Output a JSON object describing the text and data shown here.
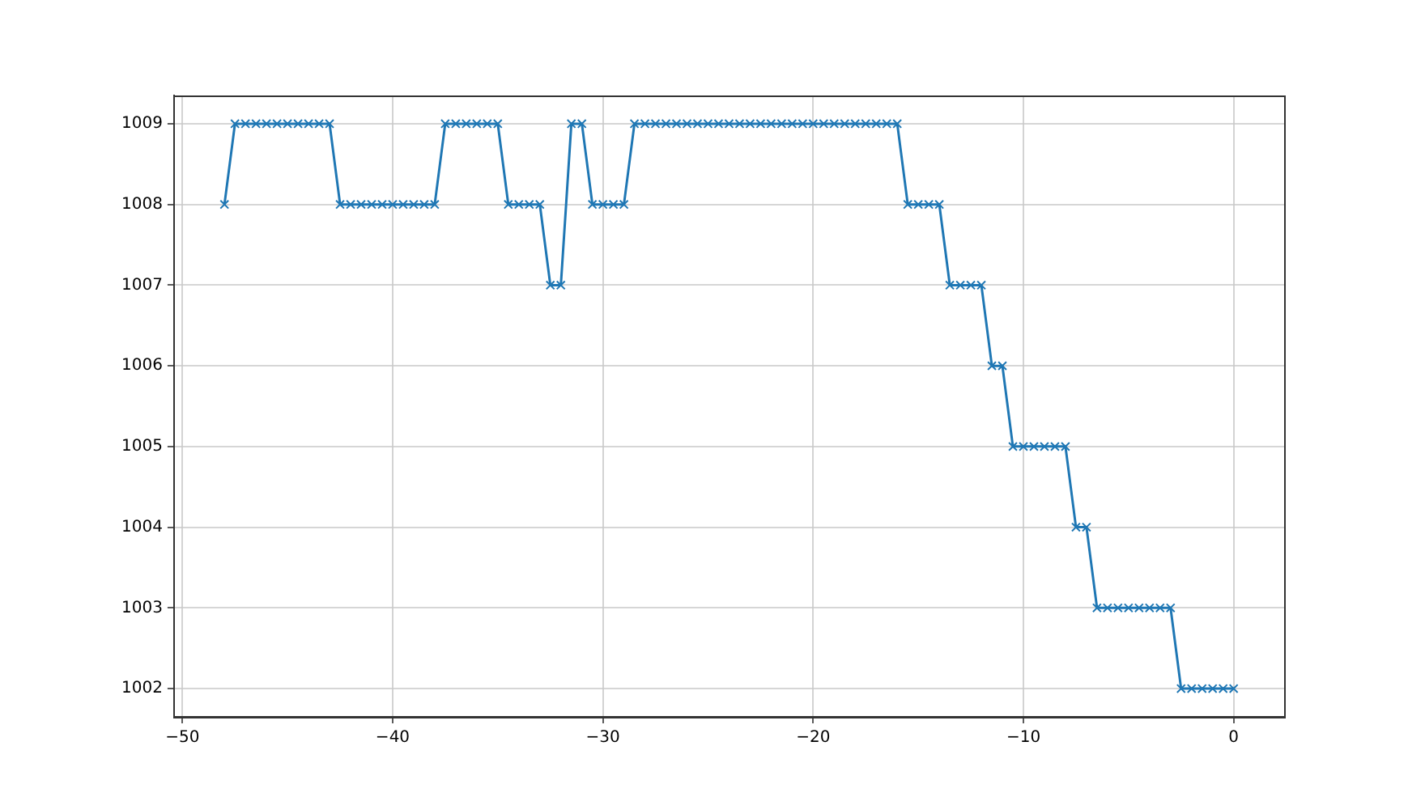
{
  "chart_data": {
    "type": "line",
    "x": [
      -48,
      -47.5,
      -47,
      -46.5,
      -46,
      -45.5,
      -45,
      -44.5,
      -44,
      -43.5,
      -43,
      -42.5,
      -42,
      -41.5,
      -41,
      -40.5,
      -40,
      -39.5,
      -39,
      -38.5,
      -38,
      -37.5,
      -37,
      -36.5,
      -36,
      -35.5,
      -35,
      -34.5,
      -34,
      -33.5,
      -33,
      -32.5,
      -32,
      -31.5,
      -31,
      -30.5,
      -30,
      -29.5,
      -29,
      -28.5,
      -28,
      -27.5,
      -27,
      -26.5,
      -26,
      -25.5,
      -25,
      -24.5,
      -24,
      -23.5,
      -23,
      -22.5,
      -22,
      -21.5,
      -21,
      -20.5,
      -20,
      -19.5,
      -19,
      -18.5,
      -18,
      -17.5,
      -17,
      -16.5,
      -16,
      -15.5,
      -15,
      -14.5,
      -14,
      -13.5,
      -13,
      -12.5,
      -12,
      -11.5,
      -11,
      -10.5,
      -10,
      -9.5,
      -9,
      -8.5,
      -8,
      -7.5,
      -7,
      -6.5,
      -6,
      -5.5,
      -5,
      -4.5,
      -4,
      -3.5,
      -3,
      -2.5,
      -2,
      -1.5,
      -1,
      -0.5,
      0
    ],
    "series": [
      {
        "color": "#1f77b4",
        "values": [
          1008,
          1009,
          1009,
          1009,
          1009,
          1009,
          1009,
          1009,
          1009,
          1009,
          1009,
          1008,
          1008,
          1008,
          1008,
          1008,
          1008,
          1008,
          1008,
          1008,
          1008,
          1009,
          1009,
          1009,
          1009,
          1009,
          1009,
          1008,
          1008,
          1008,
          1008,
          1007,
          1007,
          1009,
          1009,
          1008,
          1008,
          1008,
          1008,
          1009,
          1009,
          1009,
          1009,
          1009,
          1009,
          1009,
          1009,
          1009,
          1009,
          1009,
          1009,
          1009,
          1009,
          1009,
          1009,
          1009,
          1009,
          1009,
          1009,
          1009,
          1009,
          1009,
          1009,
          1009,
          1009,
          1008,
          1008,
          1008,
          1008,
          1007,
          1007,
          1007,
          1007,
          1006,
          1006,
          1005,
          1005,
          1005,
          1005,
          1005,
          1005,
          1004,
          1004,
          1003,
          1003,
          1003,
          1003,
          1003,
          1003,
          1003,
          1003,
          1002,
          1002,
          1002,
          1002,
          1002,
          1002
        ]
      }
    ],
    "xlim": [
      -50.4,
      2.4
    ],
    "xticks": [
      {
        "value": -50,
        "label": "−50"
      },
      {
        "value": -40,
        "label": "−40"
      },
      {
        "value": -30,
        "label": "−30"
      },
      {
        "value": -20,
        "label": "−20"
      },
      {
        "value": -10,
        "label": "−10"
      },
      0
    ],
    "ylim": [
      1001.65,
      1009.35
    ],
    "yticks": [
      1002,
      1003,
      1004,
      1005,
      1006,
      1007,
      1008,
      1009
    ],
    "grid": true,
    "legend": false,
    "marker": "cross",
    "line_style": "solid"
  }
}
